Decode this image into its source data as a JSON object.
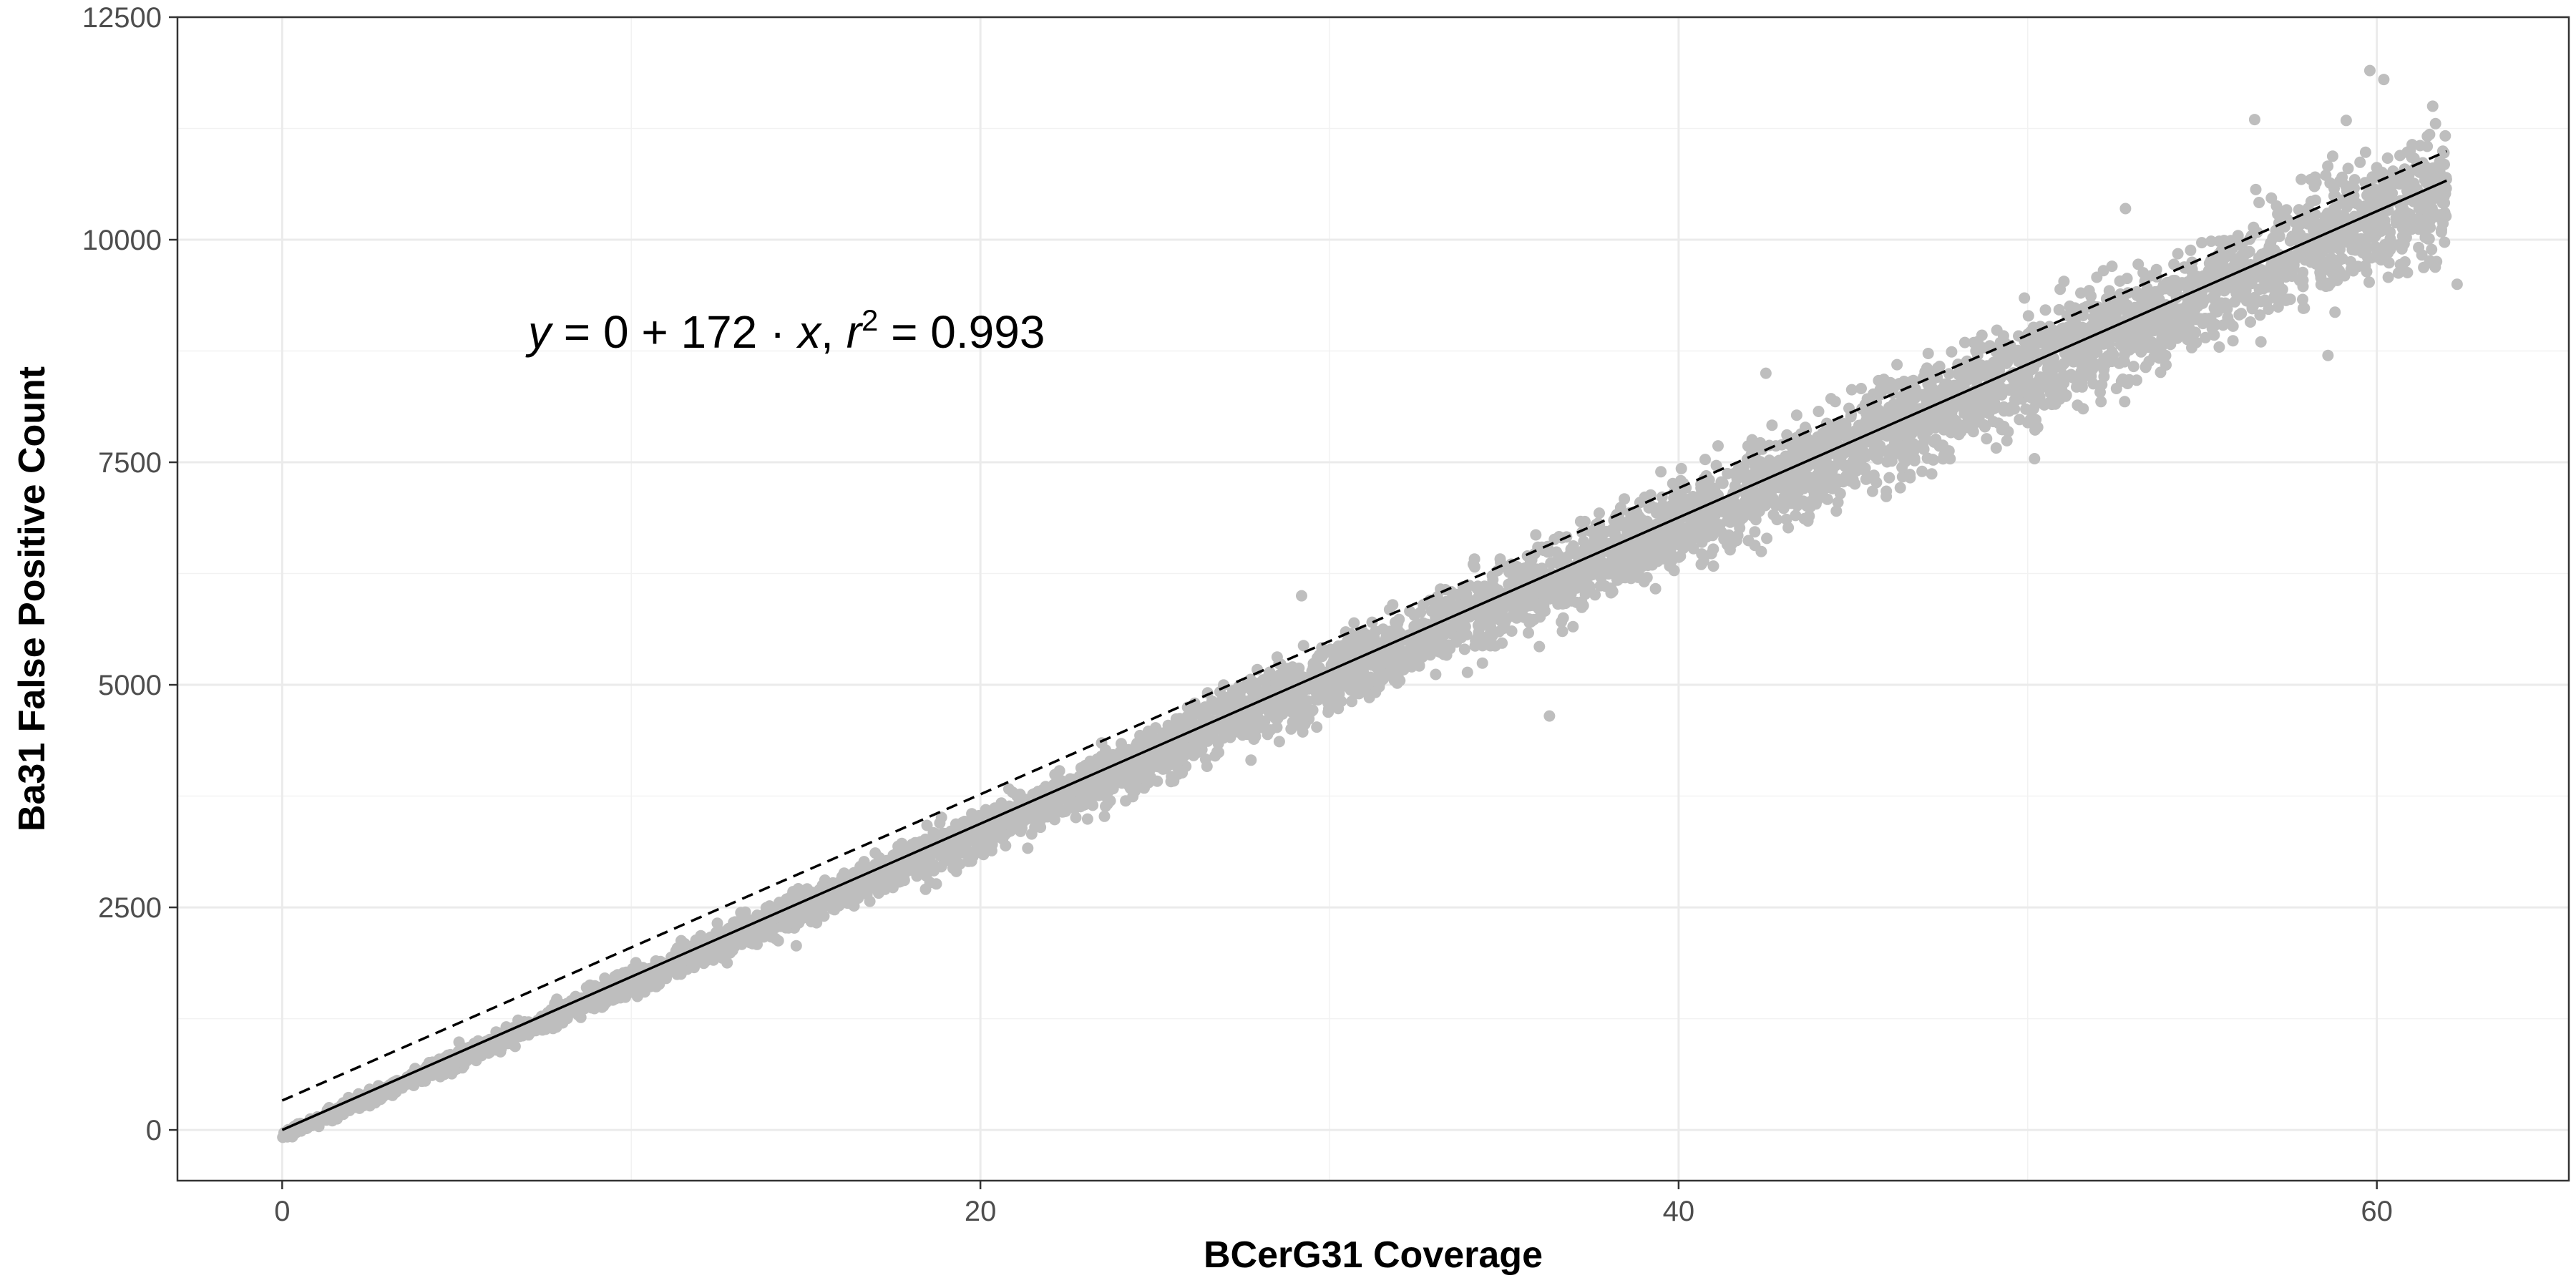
{
  "chart_data": {
    "type": "scatter",
    "title": "",
    "xlabel": "BCerG31 Coverage",
    "ylabel": "Ba31 False Positive Count",
    "xlim": [
      -3,
      65.5
    ],
    "ylim": [
      -570,
      12500
    ],
    "x_ticks": [
      0,
      20,
      40,
      60
    ],
    "x_tick_labels": [
      "0",
      "20",
      "40",
      "60"
    ],
    "y_ticks": [
      0,
      2500,
      5000,
      7500,
      10000,
      12500
    ],
    "y_tick_labels": [
      "0",
      "2500",
      "5000",
      "7500",
      "10000",
      "12500"
    ],
    "grid": true,
    "legend": "none",
    "annotation": {
      "y": "y",
      "eq1": " = 0 + 172 · ",
      "x": "x",
      "comma": ",  ",
      "r": "r",
      "sup": "2",
      "eq2": " = 0.993"
    },
    "points_color": "#bebebe",
    "point_cloud": {
      "x_range": [
        0,
        62
      ],
      "approx_count": 6000,
      "center_line": {
        "slope": 172,
        "intercept": -70
      },
      "spread_sd_per_unit_x": 5.2,
      "outliers": [
        {
          "x": 59.8,
          "y": 11900
        },
        {
          "x": 60.2,
          "y": 11800
        },
        {
          "x": 61.6,
          "y": 11500
        },
        {
          "x": 56.5,
          "y": 11350
        },
        {
          "x": 52.8,
          "y": 10350
        },
        {
          "x": 62.3,
          "y": 9500
        },
        {
          "x": 58.6,
          "y": 8700
        },
        {
          "x": 36.3,
          "y": 4650
        },
        {
          "x": 42.5,
          "y": 8500
        },
        {
          "x": 29.2,
          "y": 6000
        },
        {
          "x": 26.5,
          "y": 4600
        }
      ]
    },
    "series": [
      {
        "type": "fit",
        "style": "solid",
        "color": "#000000",
        "slope": 172,
        "intercept": 0,
        "x_range": [
          0,
          62
        ]
      },
      {
        "type": "reference",
        "style": "dashed",
        "color": "#000000",
        "slope": 172,
        "intercept": 330,
        "x_range": [
          0,
          62
        ]
      }
    ]
  }
}
